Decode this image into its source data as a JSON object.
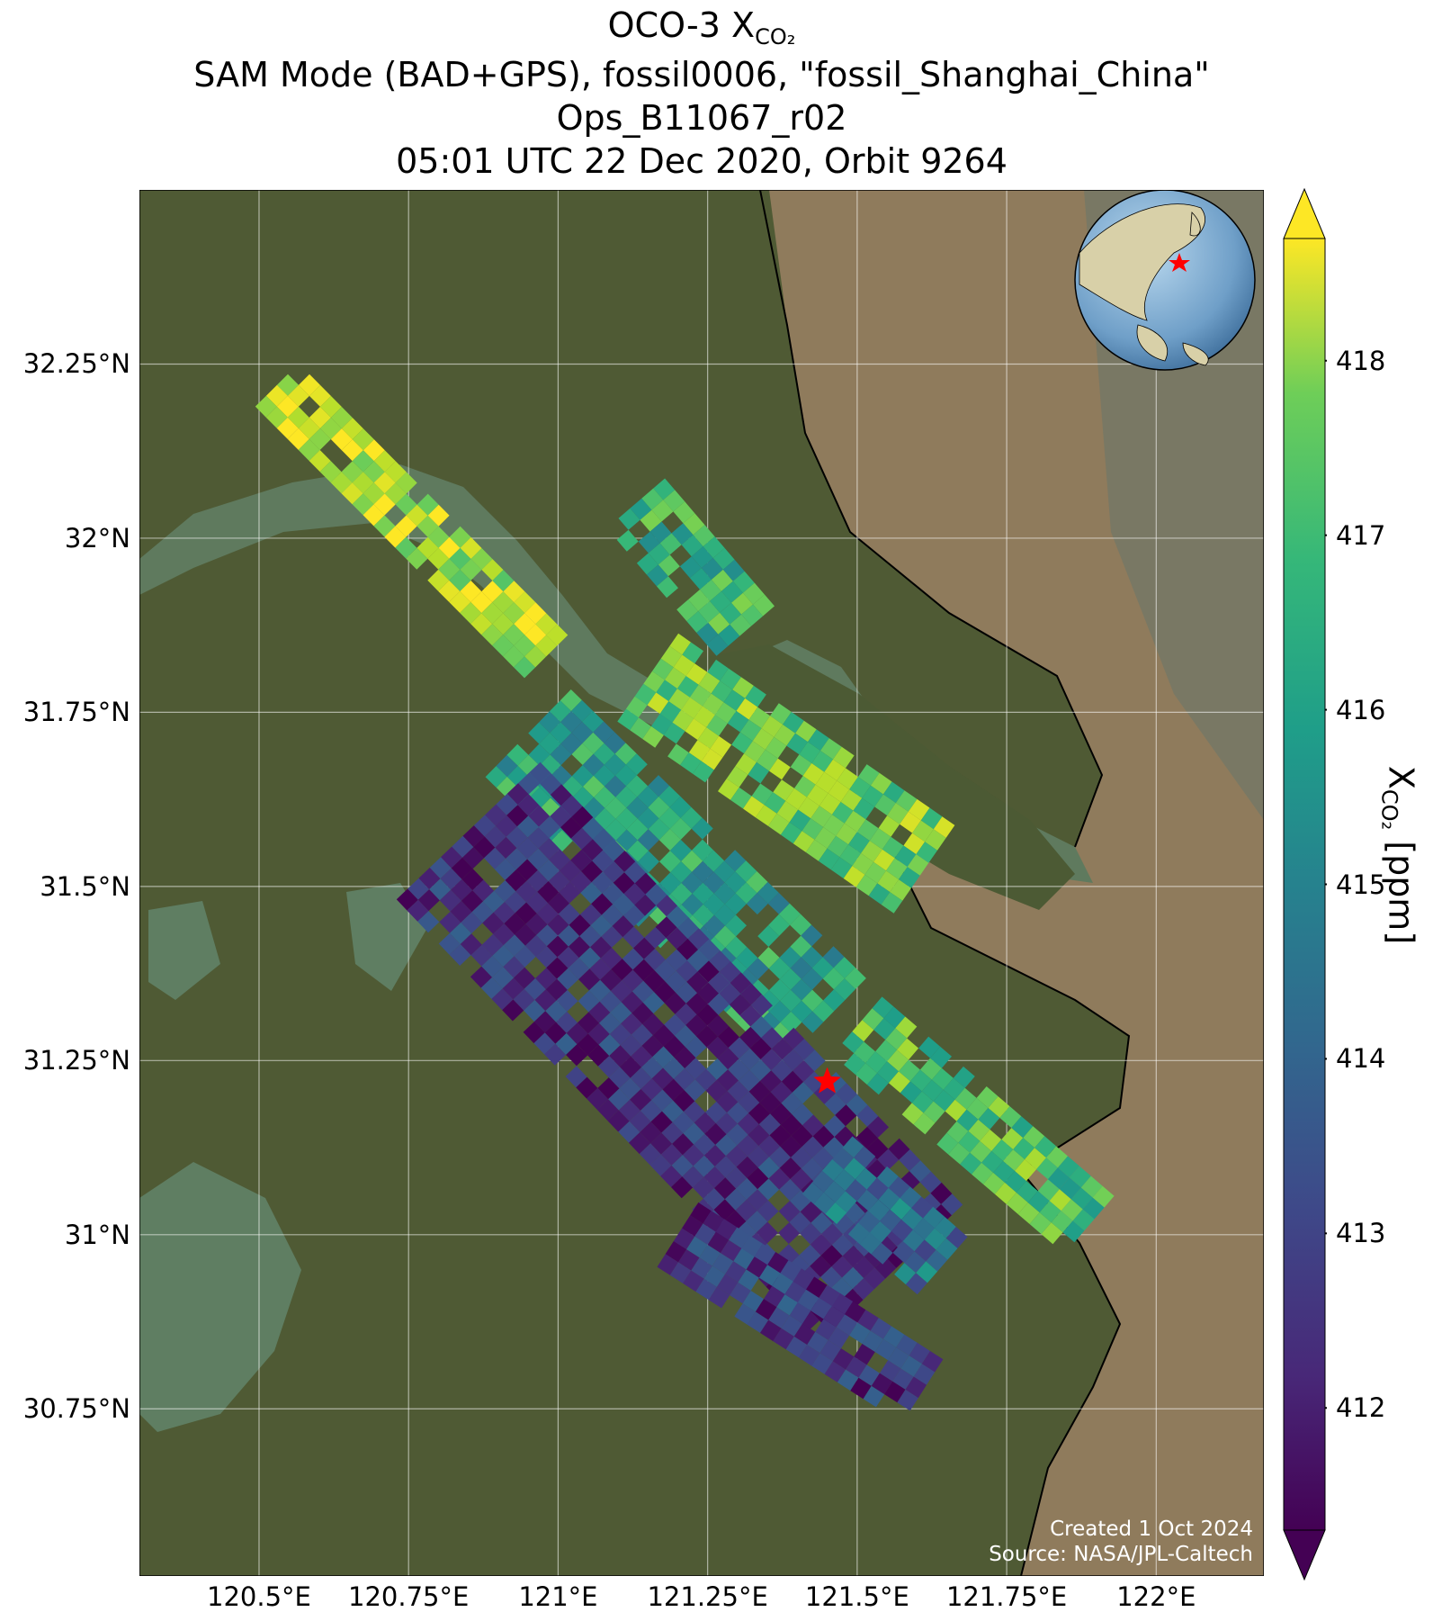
{
  "title": {
    "line1_main": "OCO-3 X",
    "line1_sub": "CO₂",
    "line2": "SAM Mode (BAD+GPS), fossil0006, \"fossil_Shanghai_China\"",
    "line3": "Ops_B11067_r02",
    "line4": "05:01 UTC 22 Dec 2020, Orbit 9264"
  },
  "map": {
    "lon_range": [
      120.3,
      122.18
    ],
    "lat_range": [
      30.51,
      32.5
    ],
    "lat_ticks": [
      "32.25°N",
      "32°N",
      "31.75°N",
      "31.5°N",
      "31.25°N",
      "31°N",
      "30.75°N"
    ],
    "lat_tick_values": [
      32.25,
      32.0,
      31.75,
      31.5,
      31.25,
      31.0,
      30.75
    ],
    "lon_ticks": [
      "120.5°E",
      "120.75°E",
      "121°E",
      "121.25°E",
      "121.5°E",
      "121.75°E",
      "122°E"
    ],
    "lon_tick_values": [
      120.5,
      120.75,
      121.0,
      121.25,
      121.5,
      121.75,
      122.0
    ],
    "target_marker": {
      "name": "fossil_Shanghai_China",
      "lon": 121.45,
      "lat": 31.22,
      "color": "#ff0000",
      "icon": "star-icon"
    },
    "land_color": "#4a5a30",
    "water_color": "#8c7a5a",
    "inset_globe": {
      "icon": "globe-inset-icon",
      "marker": "star-icon"
    },
    "credit_line1": "Created 1 Oct 2024",
    "credit_line2": "Source: NASA/JPL-Caltech"
  },
  "colorbar": {
    "label_main": "X",
    "label_sub": "CO₂",
    "label_unit": " [ppm]",
    "cmap": "viridis",
    "vmin": 411.3,
    "vmax": 418.7,
    "ticks": [
      "418",
      "417",
      "416",
      "415",
      "414",
      "413",
      "412"
    ],
    "tick_values": [
      418,
      417,
      416,
      415,
      414,
      413,
      412
    ],
    "extend": "both"
  },
  "chart_data": {
    "type": "heatmap",
    "variable": "XCO2",
    "unit": "ppm",
    "swaths": [
      {
        "lon_start": 120.53,
        "lat_start": 32.22,
        "lon_end": 120.98,
        "lat_end": 31.83,
        "width_deg": 0.1,
        "mean_xco2": 417.9
      },
      {
        "lon_start": 121.13,
        "lat_start": 32.05,
        "lon_end": 121.32,
        "lat_end": 31.86,
        "width_deg": 0.12,
        "mean_xco2": 416.0
      },
      {
        "lon_start": 121.15,
        "lat_start": 31.8,
        "lon_end": 121.62,
        "lat_end": 31.52,
        "width_deg": 0.18,
        "mean_xco2": 417.0
      },
      {
        "lon_start": 120.95,
        "lat_start": 31.72,
        "lon_end": 121.45,
        "lat_end": 31.3,
        "width_deg": 0.2,
        "mean_xco2": 415.5
      },
      {
        "lon_start": 120.85,
        "lat_start": 31.58,
        "lon_end": 121.55,
        "lat_end": 30.95,
        "width_deg": 0.32,
        "mean_xco2": 412.3
      },
      {
        "lon_start": 121.5,
        "lat_start": 31.3,
        "lon_end": 121.88,
        "lat_end": 31.02,
        "width_deg": 0.14,
        "mean_xco2": 416.5
      },
      {
        "lon_start": 121.45,
        "lat_start": 31.1,
        "lon_end": 121.65,
        "lat_end": 30.95,
        "width_deg": 0.12,
        "mean_xco2": 414.0
      },
      {
        "lon_start": 121.2,
        "lat_start": 31.0,
        "lon_end": 121.6,
        "lat_end": 30.78,
        "width_deg": 0.14,
        "mean_xco2": 412.5
      }
    ]
  }
}
